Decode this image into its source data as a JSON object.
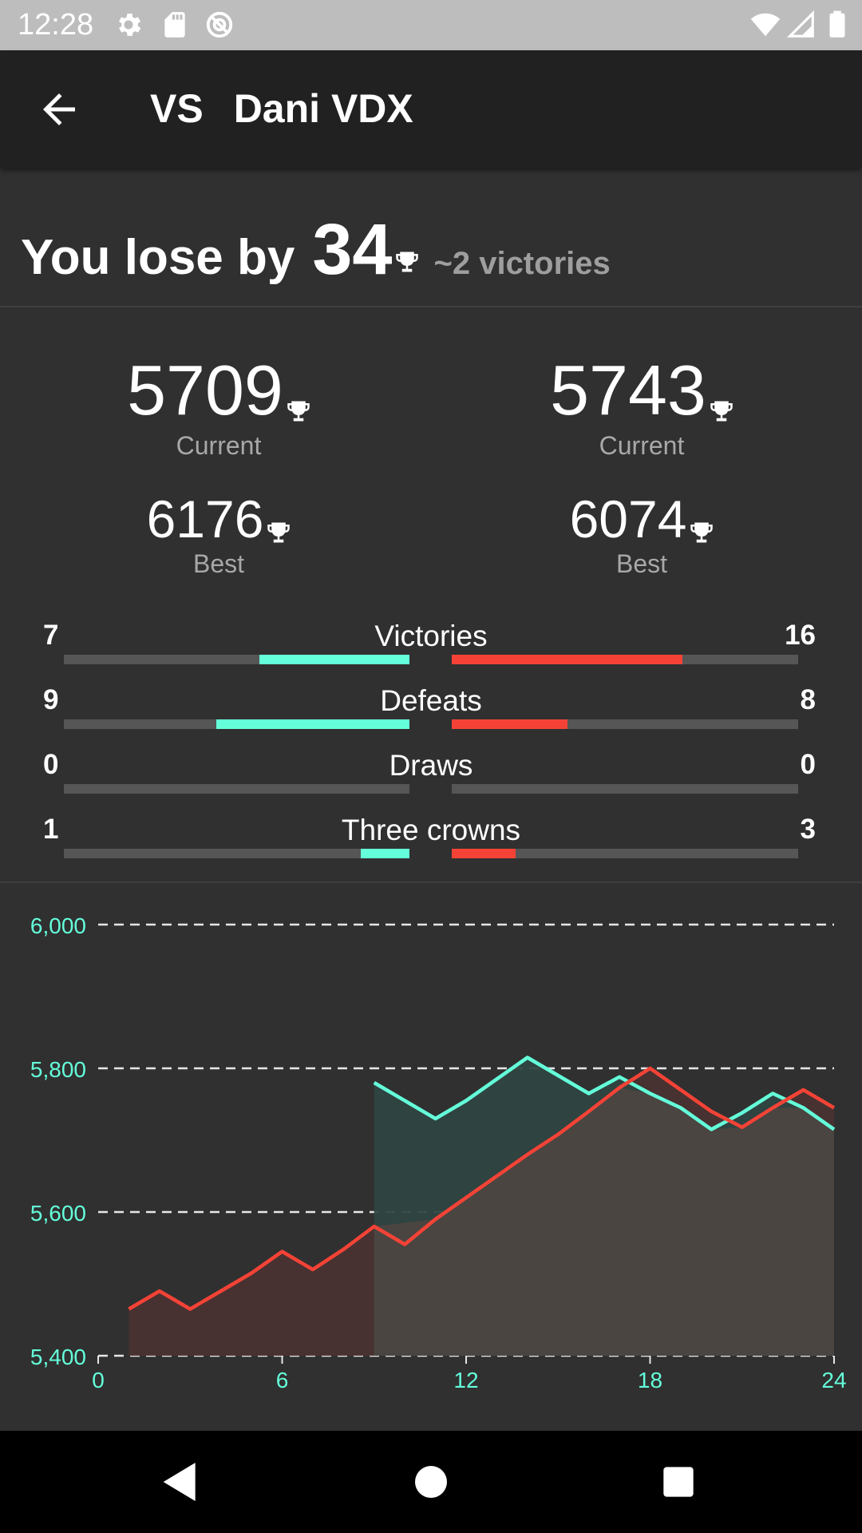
{
  "status_bar": {
    "time": "12:28",
    "icons": [
      "settings-icon",
      "sd-card-icon",
      "sync-disabled-icon",
      "wifi-icon",
      "signal-icon",
      "battery-icon"
    ]
  },
  "app_bar": {
    "vs_label": "VS",
    "opponent_name": "Dani VDX",
    "back_icon": "arrow-back-icon"
  },
  "summary": {
    "prefix": "You lose by",
    "difference": "34",
    "victories_note": "~2 victories"
  },
  "player": {
    "current": "5709",
    "current_label": "Current",
    "best": "6176",
    "best_label": "Best"
  },
  "opponent": {
    "current": "5743",
    "current_label": "Current",
    "best": "6074",
    "best_label": "Best"
  },
  "comparison": [
    {
      "label": "Victories",
      "left": "7",
      "right": "16",
      "left_fraction": 0.435,
      "right_fraction": 0.665
    },
    {
      "label": "Defeats",
      "left": "9",
      "right": "8",
      "left_fraction": 0.56,
      "right_fraction": 0.335
    },
    {
      "label": "Draws",
      "left": "0",
      "right": "0",
      "left_fraction": 0,
      "right_fraction": 0
    },
    {
      "label": "Three crowns",
      "left": "1",
      "right": "3",
      "left_fraction": 0.14,
      "right_fraction": 0.185
    }
  ],
  "colors": {
    "player": "#64ffda",
    "opponent": "#f44336",
    "player_fill": "#2f4541",
    "opponent_fill": "#4a3232",
    "overlap_fill": "#4a4541",
    "axis_text": "#64ffda",
    "grid": "#e6e6e6"
  },
  "chart_data": {
    "type": "line",
    "x_ticks": [
      0,
      6,
      12,
      18,
      24
    ],
    "y_ticks": [
      5400,
      5600,
      5800,
      6000
    ],
    "y_tick_labels": [
      "5,400",
      "5,600",
      "5,800",
      "6,000"
    ],
    "xlim": [
      0,
      24
    ],
    "ylim": [
      5400,
      6000
    ],
    "grid": "horizontal dashed",
    "series": [
      {
        "color": "#64ffda",
        "x": [
          9,
          11,
          12,
          13,
          14,
          15,
          16,
          17,
          18,
          19,
          20,
          21,
          22,
          23,
          24
        ],
        "y": [
          5780,
          5730,
          5755,
          5785,
          5815,
          5790,
          5765,
          5788,
          5765,
          5745,
          5715,
          5738,
          5765,
          5745,
          5715
        ]
      },
      {
        "color": "#f44336",
        "x": [
          1,
          2,
          3,
          4,
          5,
          6,
          7,
          8,
          9,
          10,
          11,
          12,
          13,
          14,
          15,
          16,
          17,
          18,
          19,
          20,
          21,
          22,
          23,
          24
        ],
        "y": [
          5465,
          5490,
          5465,
          5490,
          5515,
          5545,
          5520,
          5548,
          5580,
          5555,
          5590,
          5620,
          5650,
          5680,
          5708,
          5740,
          5773,
          5800,
          5770,
          5740,
          5718,
          5745,
          5770,
          5745
        ]
      }
    ]
  },
  "nav_bar": {
    "icons": [
      "back-triangle-icon",
      "home-circle-icon",
      "recents-square-icon"
    ]
  }
}
